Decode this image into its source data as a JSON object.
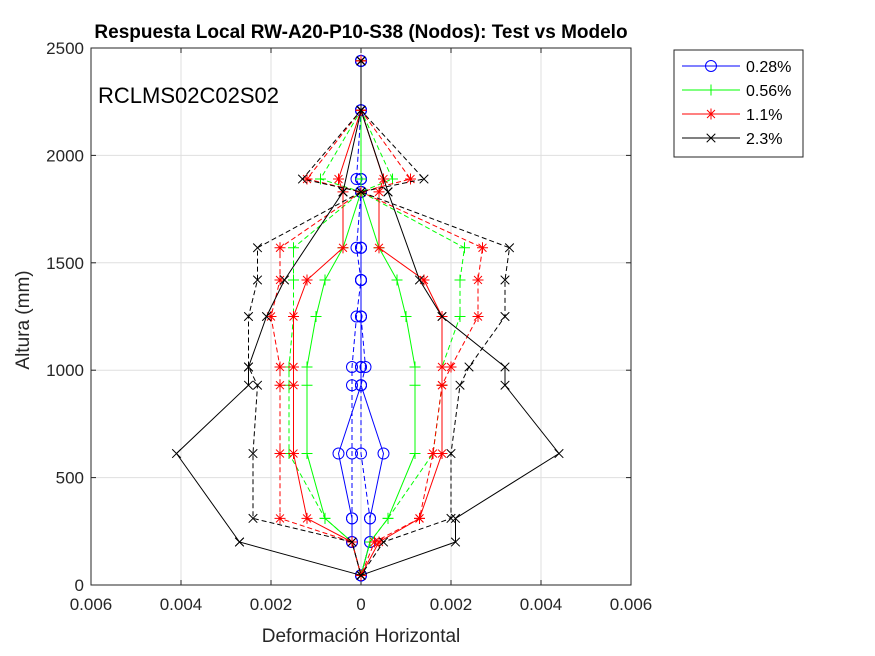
{
  "chart_data": {
    "type": "line",
    "title": "Respuesta Local RW-A20-P10-S38 (Nodos): Test vs Modelo",
    "xlabel": "Deformación Horizontal",
    "ylabel": "Altura (mm)",
    "annotation": "RCLMS02C02S02",
    "xlim": [
      -0.006,
      0.006
    ],
    "ylim": [
      0,
      2500
    ],
    "xticks": [
      -0.006,
      -0.004,
      -0.002,
      0,
      0.002,
      0.004,
      0.006
    ],
    "xtick_labels": [
      "0.006",
      "0.004",
      "0.002",
      "0",
      "0.002",
      "0.004",
      "0.006"
    ],
    "yticks": [
      0,
      500,
      1000,
      1500,
      2000,
      2500
    ],
    "ytick_labels": [
      "0",
      "500",
      "1000",
      "1500",
      "2000",
      "2500"
    ],
    "grid": true,
    "legend_position": "outside-top-right",
    "legend": [
      "0.28%",
      "0.56%",
      "1.1%",
      "2.3%"
    ],
    "series": [
      {
        "name": "0.28%",
        "color": "#0000FF",
        "marker": "circle",
        "test": [
          [
            0,
            2440
          ],
          [
            0,
            2210
          ],
          [
            0,
            1890
          ],
          [
            0,
            1830
          ],
          [
            0,
            1570
          ],
          [
            0,
            1420
          ],
          [
            0,
            1250
          ],
          [
            0.0001,
            1015
          ],
          [
            0,
            930
          ],
          [
            0,
            612
          ],
          [
            0.0002,
            310
          ],
          [
            0.0002,
            200
          ],
          [
            0,
            45
          ]
        ],
        "test_neg": [
          [
            0,
            2440
          ],
          [
            0,
            2210
          ],
          [
            -0.0001,
            1890
          ],
          [
            0,
            1830
          ],
          [
            -0.0001,
            1570
          ],
          [
            0,
            1420
          ],
          [
            -0.0001,
            1250
          ],
          [
            -0.0002,
            1015
          ],
          [
            -0.0002,
            930
          ],
          [
            -0.0002,
            612
          ],
          [
            -0.0002,
            310
          ],
          [
            -0.0002,
            200
          ],
          [
            0,
            45
          ]
        ],
        "model": [
          [
            0,
            2440
          ],
          [
            0,
            2210
          ],
          [
            0,
            1890
          ],
          [
            0,
            1830
          ],
          [
            0,
            1570
          ],
          [
            0,
            1420
          ],
          [
            0,
            1250
          ],
          [
            0,
            1015
          ],
          [
            0,
            930
          ],
          [
            0.0005,
            612
          ],
          [
            0.0002,
            310
          ],
          [
            0.0002,
            200
          ],
          [
            0,
            45
          ]
        ],
        "model_neg": [
          [
            0,
            2440
          ],
          [
            0,
            2210
          ],
          [
            0,
            1890
          ],
          [
            0,
            1830
          ],
          [
            0,
            1570
          ],
          [
            0,
            1420
          ],
          [
            0,
            1250
          ],
          [
            0,
            1015
          ],
          [
            0,
            930
          ],
          [
            -0.0005,
            612
          ],
          [
            -0.0002,
            310
          ],
          [
            -0.0002,
            200
          ],
          [
            0,
            45
          ]
        ]
      },
      {
        "name": "0.56%",
        "color": "#00FF00",
        "marker": "plus",
        "test": [
          [
            0,
            2440
          ],
          [
            0,
            2210
          ],
          [
            0.0007,
            1890
          ],
          [
            0,
            1830
          ],
          [
            0.0023,
            1570
          ],
          [
            0.0022,
            1420
          ],
          [
            0.0022,
            1250
          ],
          [
            0.0018,
            1015
          ],
          [
            0.0018,
            930
          ],
          [
            0.0016,
            612
          ],
          [
            0.0006,
            310
          ],
          [
            0.0002,
            200
          ],
          [
            0,
            45
          ]
        ],
        "test_neg": [
          [
            0,
            2440
          ],
          [
            0,
            2210
          ],
          [
            -0.0009,
            1890
          ],
          [
            0,
            1830
          ],
          [
            -0.0015,
            1570
          ],
          [
            -0.0015,
            1420
          ],
          [
            -0.0015,
            1250
          ],
          [
            -0.0016,
            1015
          ],
          [
            -0.0016,
            930
          ],
          [
            -0.0016,
            612
          ],
          [
            -0.0008,
            310
          ],
          [
            -0.0002,
            200
          ],
          [
            0,
            45
          ]
        ],
        "model": [
          [
            0,
            2440
          ],
          [
            0,
            2210
          ],
          [
            0,
            1890
          ],
          [
            0,
            1830
          ],
          [
            0.0004,
            1570
          ],
          [
            0.0008,
            1420
          ],
          [
            0.001,
            1250
          ],
          [
            0.0012,
            1015
          ],
          [
            0.0012,
            930
          ],
          [
            0.0012,
            612
          ],
          [
            0.0006,
            310
          ],
          [
            0.0002,
            200
          ],
          [
            0,
            45
          ]
        ],
        "model_neg": [
          [
            0,
            2440
          ],
          [
            0,
            2210
          ],
          [
            0,
            1890
          ],
          [
            0,
            1830
          ],
          [
            -0.0004,
            1570
          ],
          [
            -0.0008,
            1420
          ],
          [
            -0.001,
            1250
          ],
          [
            -0.0012,
            1015
          ],
          [
            -0.0012,
            930
          ],
          [
            -0.0012,
            612
          ],
          [
            -0.0008,
            310
          ],
          [
            -0.0002,
            200
          ],
          [
            0,
            45
          ]
        ]
      },
      {
        "name": "1.1%",
        "color": "#FF0000",
        "marker": "star",
        "test": [
          [
            0,
            2440
          ],
          [
            0,
            2210
          ],
          [
            0.0011,
            1890
          ],
          [
            0,
            1830
          ],
          [
            0.0027,
            1570
          ],
          [
            0.0026,
            1420
          ],
          [
            0.0026,
            1250
          ],
          [
            0.002,
            1015
          ],
          [
            0.0018,
            930
          ],
          [
            0.0016,
            612
          ],
          [
            0.0013,
            310
          ],
          [
            0.0003,
            200
          ],
          [
            0,
            45
          ]
        ],
        "test_neg": [
          [
            0,
            2440
          ],
          [
            0,
            2210
          ],
          [
            -0.0012,
            1890
          ],
          [
            0,
            1830
          ],
          [
            -0.0018,
            1570
          ],
          [
            -0.0018,
            1420
          ],
          [
            -0.002,
            1250
          ],
          [
            -0.0018,
            1015
          ],
          [
            -0.0018,
            930
          ],
          [
            -0.0018,
            612
          ],
          [
            -0.0018,
            310
          ],
          [
            -0.0002,
            200
          ],
          [
            0,
            45
          ]
        ],
        "model": [
          [
            0,
            2440
          ],
          [
            0,
            2210
          ],
          [
            0.0005,
            1890
          ],
          [
            0.0004,
            1830
          ],
          [
            0.0004,
            1570
          ],
          [
            0.0014,
            1420
          ],
          [
            0.0018,
            1250
          ],
          [
            0.0018,
            1015
          ],
          [
            0.0018,
            930
          ],
          [
            0.0018,
            612
          ],
          [
            0.0013,
            310
          ],
          [
            0.0004,
            200
          ],
          [
            0,
            45
          ]
        ],
        "model_neg": [
          [
            0,
            2440
          ],
          [
            0,
            2210
          ],
          [
            -0.0005,
            1890
          ],
          [
            -0.0004,
            1830
          ],
          [
            -0.0004,
            1570
          ],
          [
            -0.0012,
            1420
          ],
          [
            -0.0015,
            1250
          ],
          [
            -0.0015,
            1015
          ],
          [
            -0.0015,
            930
          ],
          [
            -0.0015,
            612
          ],
          [
            -0.0012,
            310
          ],
          [
            -0.0002,
            200
          ],
          [
            0,
            45
          ]
        ]
      },
      {
        "name": "2.3%",
        "color": "#000000",
        "marker": "x",
        "test": [
          [
            0,
            2440
          ],
          [
            0,
            2210
          ],
          [
            0.0014,
            1890
          ],
          [
            0,
            1830
          ],
          [
            0.0033,
            1570
          ],
          [
            0.0032,
            1420
          ],
          [
            0.0032,
            1250
          ],
          [
            0.0024,
            1015
          ],
          [
            0.0022,
            930
          ],
          [
            0.002,
            612
          ],
          [
            0.002,
            310
          ],
          [
            0.0005,
            200
          ],
          [
            0,
            45
          ]
        ],
        "test_neg": [
          [
            0,
            2440
          ],
          [
            0,
            2210
          ],
          [
            -0.0013,
            1890
          ],
          [
            0,
            1830
          ],
          [
            -0.0023,
            1570
          ],
          [
            -0.0023,
            1420
          ],
          [
            -0.0025,
            1250
          ],
          [
            -0.0025,
            1015
          ],
          [
            -0.0023,
            930
          ],
          [
            -0.0024,
            612
          ],
          [
            -0.0024,
            310
          ],
          [
            -0.0002,
            200
          ],
          [
            0,
            45
          ]
        ],
        "model": [
          [
            0,
            2440
          ],
          [
            0,
            2210
          ],
          [
            0.0006,
            1830
          ],
          [
            0.0006,
            1830
          ],
          [
            0.0006,
            1830
          ],
          [
            0.0013,
            1420
          ],
          [
            0.0018,
            1250
          ],
          [
            0.0032,
            1015
          ],
          [
            0.0032,
            930
          ],
          [
            0.0044,
            612
          ],
          [
            0.0021,
            310
          ],
          [
            0.0021,
            200
          ],
          [
            0,
            45
          ]
        ],
        "model_neg": [
          [
            0,
            2440
          ],
          [
            0,
            2210
          ],
          [
            -0.0004,
            1830
          ],
          [
            -0.0004,
            1830
          ],
          [
            -0.0004,
            1830
          ],
          [
            -0.0017,
            1420
          ],
          [
            -0.0021,
            1250
          ],
          [
            -0.0025,
            1015
          ],
          [
            -0.0025,
            930
          ],
          [
            -0.0041,
            612
          ],
          [
            -0.0027,
            200
          ],
          [
            -0.0027,
            200
          ],
          [
            0,
            45
          ]
        ]
      }
    ]
  }
}
